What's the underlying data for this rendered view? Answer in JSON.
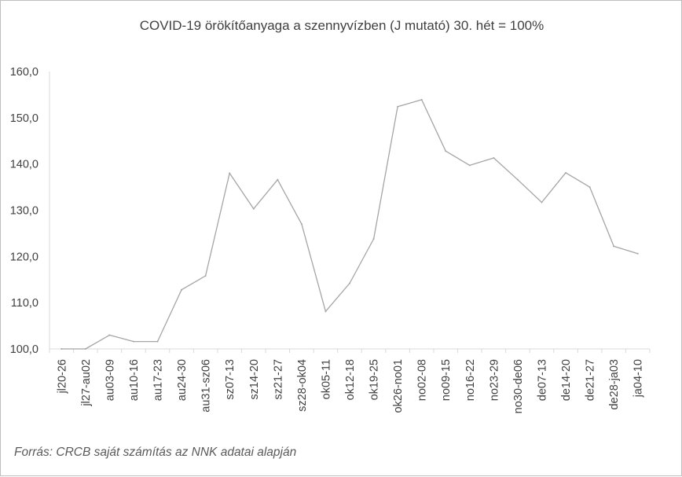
{
  "chart_data": {
    "type": "line",
    "title": "COVID-19 örökítőanyaga a szennyvízben (J mutató) 30. hét = 100%",
    "xlabel": "",
    "ylabel": "",
    "ylim": [
      100,
      160
    ],
    "yticks": [
      "100,0",
      "110,0",
      "120,0",
      "130,0",
      "140,0",
      "150,0",
      "160,0"
    ],
    "ytick_values": [
      100,
      110,
      120,
      130,
      140,
      150,
      160
    ],
    "categories": [
      "jl20-26",
      "jl27-au02",
      "au03-09",
      "au10-16",
      "au17-23",
      "au24-30",
      "au31-sz06",
      "sz07-13",
      "sz14-20",
      "sz21-27",
      "sz28-ok04",
      "ok05-11",
      "ok12-18",
      "ok19-25",
      "ok26-no01",
      "no02-08",
      "no09-15",
      "no16-22",
      "no23-29",
      "no30-de06",
      "de07-13",
      "de14-20",
      "de21-27",
      "de28-ja03",
      "ja04-10"
    ],
    "series": [
      {
        "values": [
          100.0,
          100.0,
          103.0,
          101.6,
          101.6,
          112.8,
          115.8,
          138.0,
          130.3,
          136.6,
          127.0,
          108.1,
          114.2,
          123.8,
          152.4,
          153.9,
          142.8,
          139.7,
          141.3,
          136.6,
          131.7,
          138.1,
          135.0,
          122.2,
          120.6
        ],
        "color": "#a5a5a5"
      }
    ],
    "grid": false,
    "legend": "none"
  },
  "footer": {
    "source": "Forrás: CRCB saját számítás az NNK adatai alapján"
  }
}
